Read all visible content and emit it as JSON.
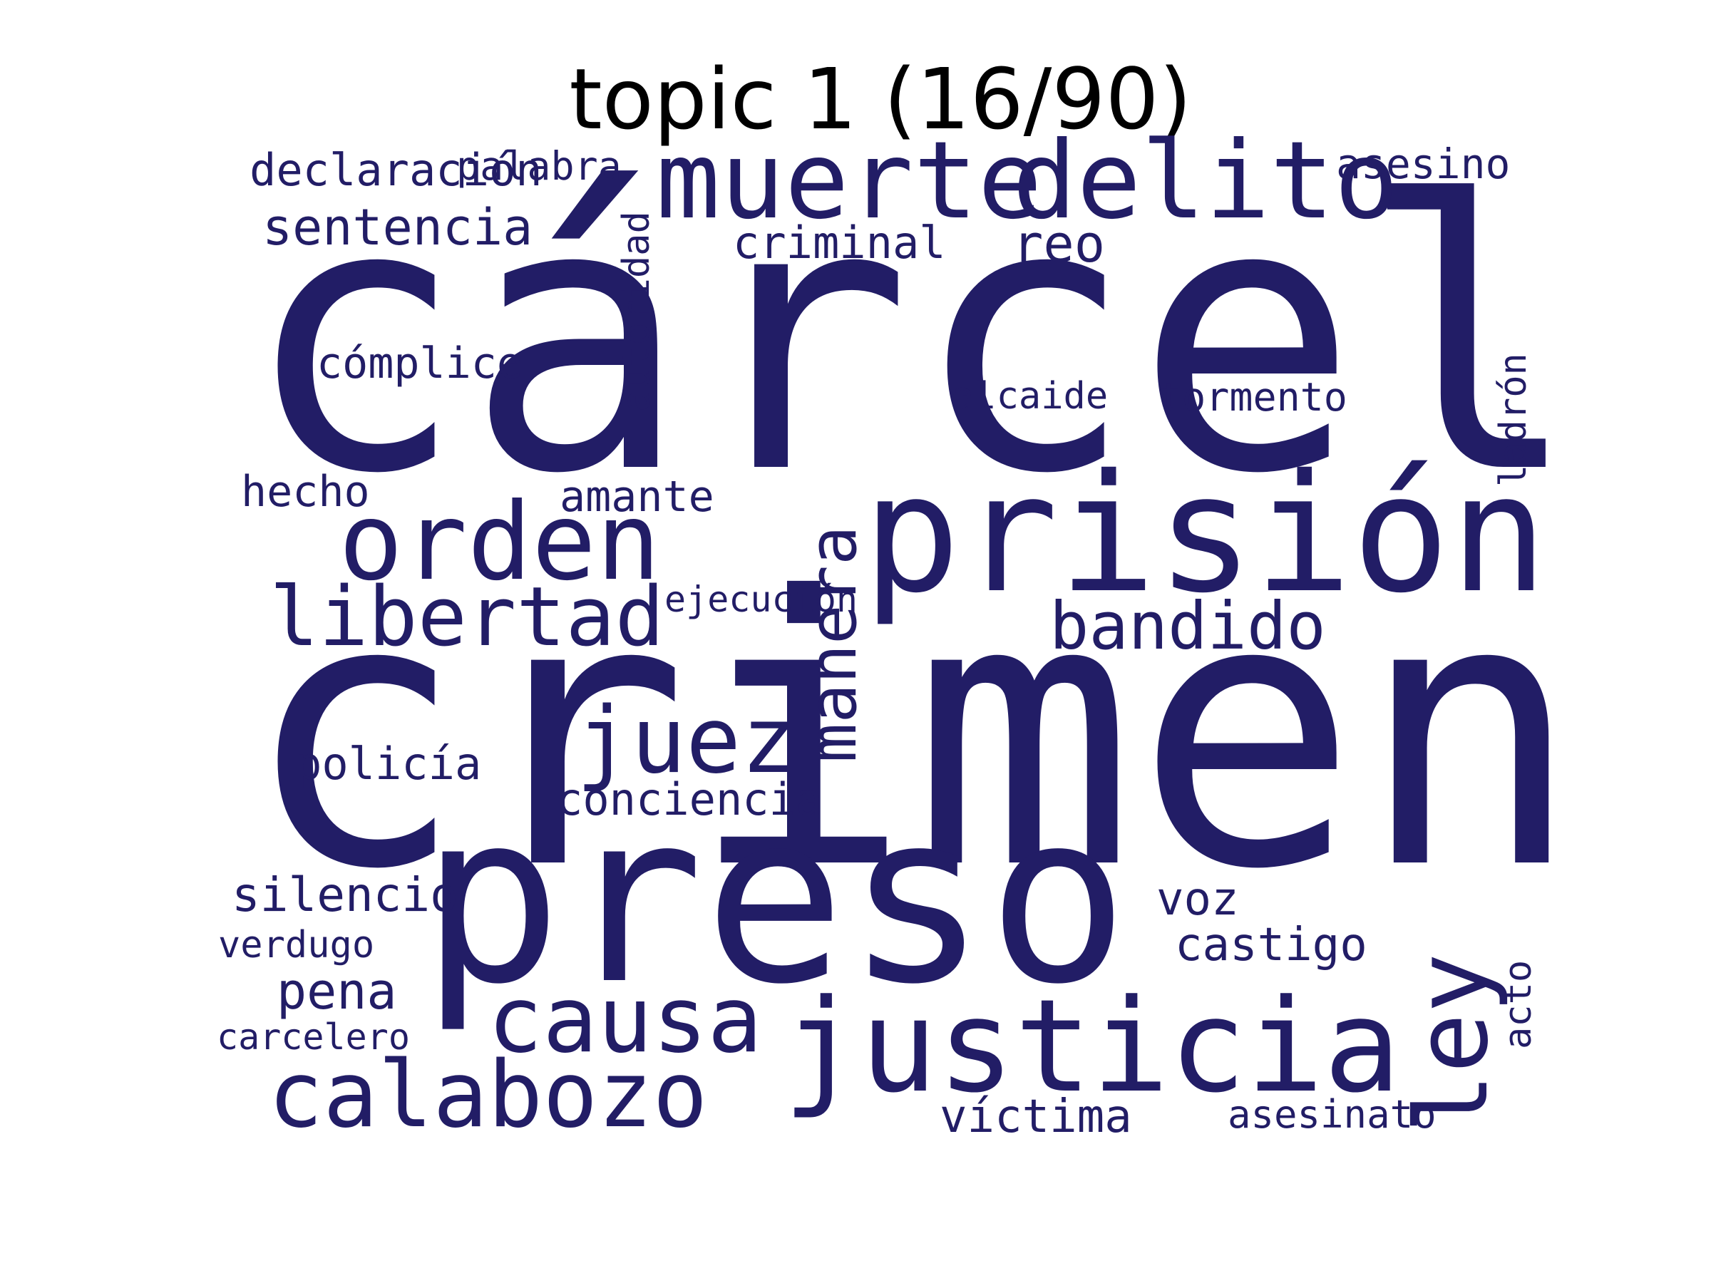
{
  "title": "topic 1 (16/90)",
  "colors": {
    "word": "#221d66",
    "title": "#000000",
    "background": "#ffffff"
  },
  "words": [
    "cárcel",
    "crimen",
    "preso",
    "prisión",
    "justicia",
    "muerte",
    "delito",
    "orden",
    "libertad",
    "calabozo",
    "causa",
    "juez",
    "bandido",
    "reo",
    "sentencia",
    "declaración",
    "palabra",
    "asesino",
    "criminal",
    "cómplice",
    "alcaide",
    "tormento",
    "hecho",
    "amante",
    "ejecución",
    "policía",
    "conciencia",
    "silencio",
    "voz",
    "castigo",
    "verdugo",
    "pena",
    "carcelero",
    "víctima",
    "asesinato",
    "ley",
    "manera",
    "autoridad",
    "ladrón",
    "acto"
  ]
}
